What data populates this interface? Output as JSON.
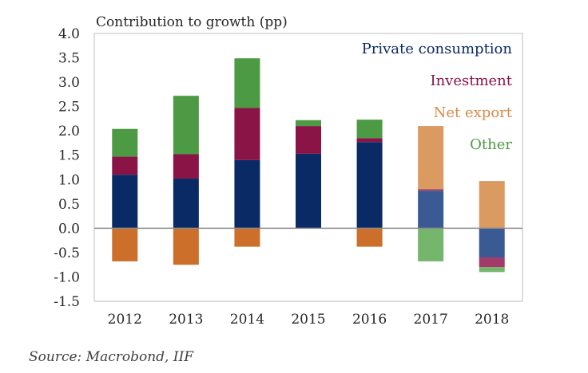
{
  "chart_data": {
    "type": "bar",
    "stacked": true,
    "ylabel": "Contribution to growth (pp)",
    "ylim": [
      -1.5,
      4.0
    ],
    "yticks": [
      "4.0",
      "3.5",
      "3.0",
      "2.5",
      "2.0",
      "1.5",
      "1.0",
      "0.5",
      "0.0",
      "-0.5",
      "-1.0",
      "-1.5"
    ],
    "categories": [
      "2012",
      "2013",
      "2014",
      "2015",
      "2016",
      "2017",
      "2018"
    ],
    "forecast_from": "2017",
    "series": [
      {
        "name": "Private consumption",
        "color": "#0a2a66",
        "forecast_color": "#3a5a93",
        "values": [
          1.1,
          1.02,
          1.4,
          1.53,
          1.77,
          0.77,
          -0.6
        ]
      },
      {
        "name": "Investment",
        "color": "#8b1446",
        "forecast_color": "#a23a6c",
        "values": [
          0.37,
          0.5,
          1.07,
          0.57,
          0.08,
          0.03,
          -0.2
        ]
      },
      {
        "name": "Net export",
        "color": "#cc6f2a",
        "forecast_color": "#db9a60",
        "values": [
          -0.68,
          -0.75,
          -0.38,
          0.0,
          -0.38,
          1.3,
          0.97
        ]
      },
      {
        "name": "Other",
        "color": "#4d9a44",
        "forecast_color": "#74b66c",
        "values": [
          0.57,
          1.2,
          1.02,
          0.12,
          0.38,
          -0.68,
          -0.1
        ]
      }
    ],
    "grid": false,
    "legend_position": "top-right"
  },
  "source": "Source: Macrobond, IIF"
}
